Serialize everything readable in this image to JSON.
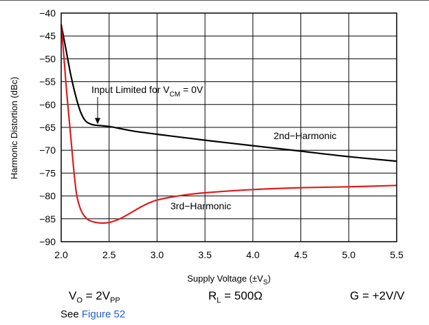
{
  "chart_data": {
    "type": "line",
    "xlabel": "Supply Voltage (±V",
    "xlabel_sub": "S",
    "xlabel_tail": ")",
    "ylabel": "Harmonic Distortion (dBc)",
    "xlim": [
      2.0,
      5.5
    ],
    "ylim": [
      -90,
      -40
    ],
    "x_ticks": [
      "2.0",
      "2.5",
      "3.0",
      "3.5",
      "4.0",
      "4.5",
      "5.0",
      "5.5"
    ],
    "y_ticks": [
      "−40",
      "−45",
      "−50",
      "−55",
      "−60",
      "−65",
      "−70",
      "−75",
      "−80",
      "−85",
      "−90"
    ],
    "grid": true,
    "series": [
      {
        "name": "2nd−Harmonic",
        "color": "#000000",
        "x": [
          2.0,
          2.05,
          2.1,
          2.15,
          2.2,
          2.25,
          2.3,
          2.35,
          2.4,
          2.5,
          2.6,
          2.75,
          3.0,
          3.5,
          4.0,
          4.5,
          5.0,
          5.5
        ],
        "y": [
          -42.5,
          -48.0,
          -53.5,
          -58.0,
          -61.5,
          -63.5,
          -64.2,
          -64.5,
          -64.6,
          -64.8,
          -65.2,
          -65.8,
          -66.5,
          -67.8,
          -69.0,
          -70.2,
          -71.4,
          -72.4
        ]
      },
      {
        "name": "3rd−Harmonic",
        "color": "#e01b1b",
        "x": [
          2.0,
          2.03,
          2.06,
          2.1,
          2.13,
          2.16,
          2.2,
          2.25,
          2.3,
          2.4,
          2.5,
          2.6,
          2.7,
          2.85,
          3.0,
          3.25,
          3.5,
          4.0,
          4.5,
          5.0,
          5.5
        ],
        "y": [
          -42.5,
          -50.0,
          -58.0,
          -67.0,
          -74.0,
          -79.5,
          -82.8,
          -84.6,
          -85.4,
          -85.9,
          -85.8,
          -85.1,
          -84.0,
          -82.2,
          -80.9,
          -79.9,
          -79.3,
          -78.6,
          -78.2,
          -78.0,
          -77.7
        ]
      }
    ],
    "annotations": [
      {
        "text": "Input Limited for V",
        "sub": "CM",
        "tail": " = 0V",
        "points_to": {
          "x": 2.38,
          "y": -64.6
        }
      },
      {
        "text": "2nd−Harmonic",
        "at": "series-1-label"
      },
      {
        "text": "3rd−Harmonic",
        "at": "series-2-label"
      }
    ]
  },
  "conditions": {
    "vo": {
      "pre": "V",
      "sub1": "O",
      "mid": " = 2V",
      "sub2": "PP"
    },
    "rl": {
      "pre": "R",
      "sub": "L",
      "tail": " = 500Ω"
    },
    "gain": {
      "text": "G = +2V/V"
    }
  },
  "see_also": {
    "prefix": "See ",
    "link": "Figure 52"
  }
}
